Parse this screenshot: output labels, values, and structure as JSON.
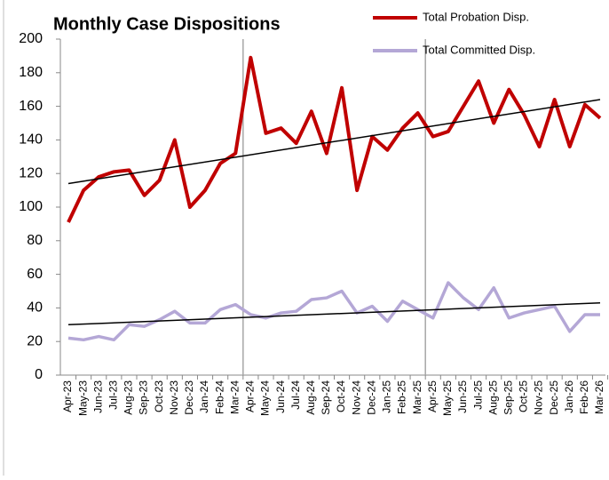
{
  "chart_data": {
    "type": "line",
    "title": "Monthly Case Dispositions",
    "categories": [
      "Apr-23",
      "May-23",
      "Jun-23",
      "Jul-23",
      "Aug-23",
      "Sep-23",
      "Oct-23",
      "Nov-23",
      "Dec-23",
      "Jan-24",
      "Feb-24",
      "Mar-24",
      "Apr-24",
      "May-24",
      "Jun-24",
      "Jul-24",
      "Aug-24",
      "Sep-24",
      "Oct-24",
      "Nov-24",
      "Dec-24",
      "Jan-25",
      "Feb-25",
      "Mar-25",
      "Apr-25",
      "May-25",
      "Jun-25",
      "Jul-25",
      "Aug-25",
      "Sep-25",
      "Oct-25",
      "Nov-25",
      "Dec-25",
      "Jan-26",
      "Feb-26",
      "Mar-26"
    ],
    "series": [
      {
        "name": "Total Probation Disp.",
        "color": "#c00000",
        "trend": [
          114,
          164
        ],
        "values": [
          91,
          110,
          118,
          121,
          122,
          107,
          116,
          140,
          100,
          110,
          126,
          132,
          189,
          144,
          147,
          138,
          157,
          132,
          171,
          110,
          142,
          134,
          147,
          156,
          142,
          145,
          160,
          175,
          150,
          170,
          155,
          136,
          164,
          136,
          161,
          153
        ]
      },
      {
        "name": "Total Committed Disp.",
        "color": "#b4a7d6",
        "trend": [
          30,
          43
        ],
        "values": [
          22,
          21,
          23,
          21,
          30,
          29,
          33,
          38,
          31,
          31,
          39,
          42,
          36,
          34,
          37,
          38,
          45,
          46,
          50,
          37,
          41,
          32,
          44,
          39,
          34,
          55,
          46,
          39,
          52,
          34,
          37,
          39,
          41,
          26,
          36,
          36
        ]
      }
    ],
    "trend_color": "#000000",
    "divider_after": [
      "Mar-24",
      "Mar-25"
    ],
    "divider_color": "#a6a6a6",
    "ylim": [
      0,
      200
    ],
    "yticks": [
      0,
      20,
      40,
      60,
      80,
      100,
      120,
      140,
      160,
      180,
      200
    ]
  }
}
